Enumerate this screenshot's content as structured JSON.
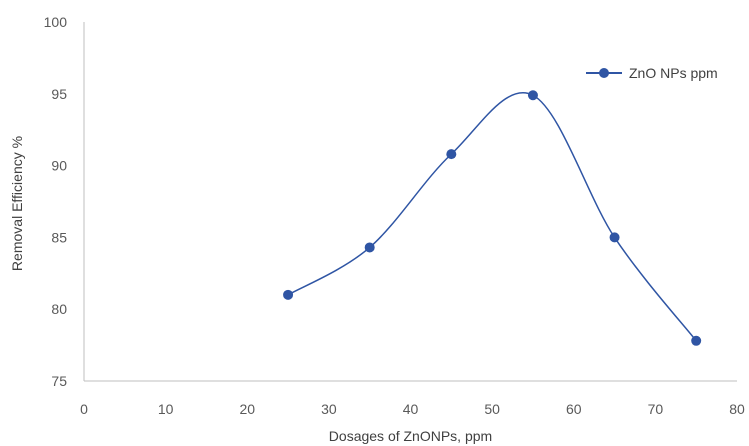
{
  "chart_data": {
    "type": "line",
    "smooth": true,
    "xlabel": "Dosages of ZnONPs, ppm",
    "ylabel": "Removal Efficiency %",
    "xlim": [
      0,
      80
    ],
    "ylim": [
      75,
      100
    ],
    "xticks": [
      "0",
      "10",
      "20",
      "30",
      "40",
      "50",
      "60",
      "70",
      "80"
    ],
    "yticks": [
      "75",
      "80",
      "85",
      "90",
      "95",
      "100"
    ],
    "grid": false,
    "legend_position": "top-right",
    "series": [
      {
        "name": "ZnO NPs ppm",
        "color": "#2f55a4",
        "x": [
          25,
          35,
          45,
          55,
          65,
          75
        ],
        "y": [
          81.0,
          84.3,
          90.8,
          94.9,
          85.0,
          77.8
        ]
      }
    ]
  }
}
